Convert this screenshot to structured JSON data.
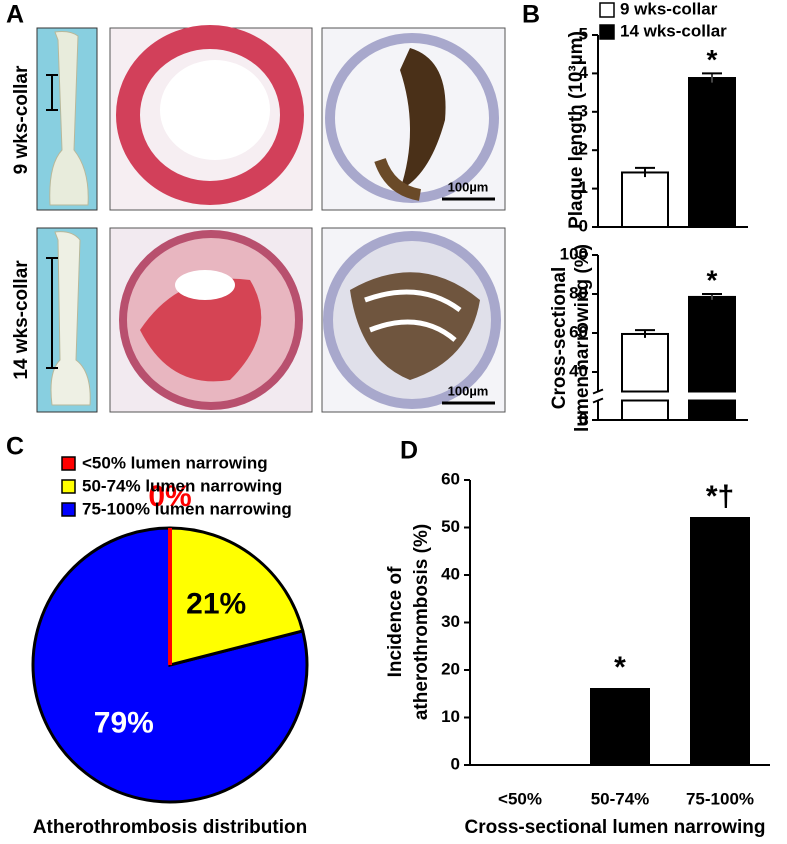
{
  "panel_labels": [
    "A",
    "B",
    "C",
    "D"
  ],
  "panel_a": {
    "rows": [
      "9 wks-collar",
      "14 wks-collar"
    ],
    "scale_bar": "100µm"
  },
  "chart_data": [
    {
      "type": "bar",
      "ylabel": "Plaque length (10³µm)",
      "ylim": [
        0,
        5
      ],
      "yticks": [
        0,
        1,
        2,
        3,
        4,
        5
      ],
      "legend": "top",
      "series": [
        {
          "name": "9 wks-collar",
          "color": "#ffffff",
          "values": [
            1.42
          ],
          "errors": [
            0.12
          ]
        },
        {
          "name": "14 wks-collar",
          "color": "#000000",
          "values": [
            3.88
          ],
          "errors": [
            0.12
          ],
          "marker": "*"
        }
      ]
    },
    {
      "type": "bar",
      "ylabel": [
        "Cross-sectional",
        "lumen narrowing (%)"
      ],
      "ylim": [
        0,
        100
      ],
      "yticks": [
        0,
        40,
        60,
        80,
        100
      ],
      "axis_break": [
        10,
        30
      ],
      "series": [
        {
          "color": "#ffffff",
          "values": [
            59.5
          ],
          "errors": [
            2
          ]
        },
        {
          "color": "#000000",
          "values": [
            78.5
          ],
          "errors": [
            1.5
          ],
          "marker": "*"
        }
      ]
    },
    {
      "type": "pie",
      "title": "Atherothrombosis distribution",
      "counterclock": true,
      "legend": "top left",
      "categories": [
        "<50% lumen narrowing",
        "50-74% lumen narrowing",
        "75-100% lumen narrowing"
      ],
      "values": [
        0,
        21,
        79
      ],
      "value_labels": [
        "0%",
        "21%",
        "79%"
      ],
      "colors": [
        "#ff0000",
        "#ffff00",
        "#0000ff"
      ],
      "value_label_colors": [
        "#ff0000",
        "#000000",
        "#ffffff"
      ]
    },
    {
      "type": "bar",
      "ylabel": [
        "Incidence of",
        "atherothrombosis (%)"
      ],
      "xlabel": "Cross-sectional lumen narrowing",
      "categories": [
        "<50%",
        "50-74%",
        "75-100%"
      ],
      "values": [
        0,
        16,
        52
      ],
      "bar_labels": [
        null,
        "*",
        "*†"
      ],
      "color": "#000000",
      "ylim": [
        0,
        60
      ],
      "yticks": [
        0,
        10,
        20,
        30,
        40,
        50,
        60
      ]
    }
  ]
}
